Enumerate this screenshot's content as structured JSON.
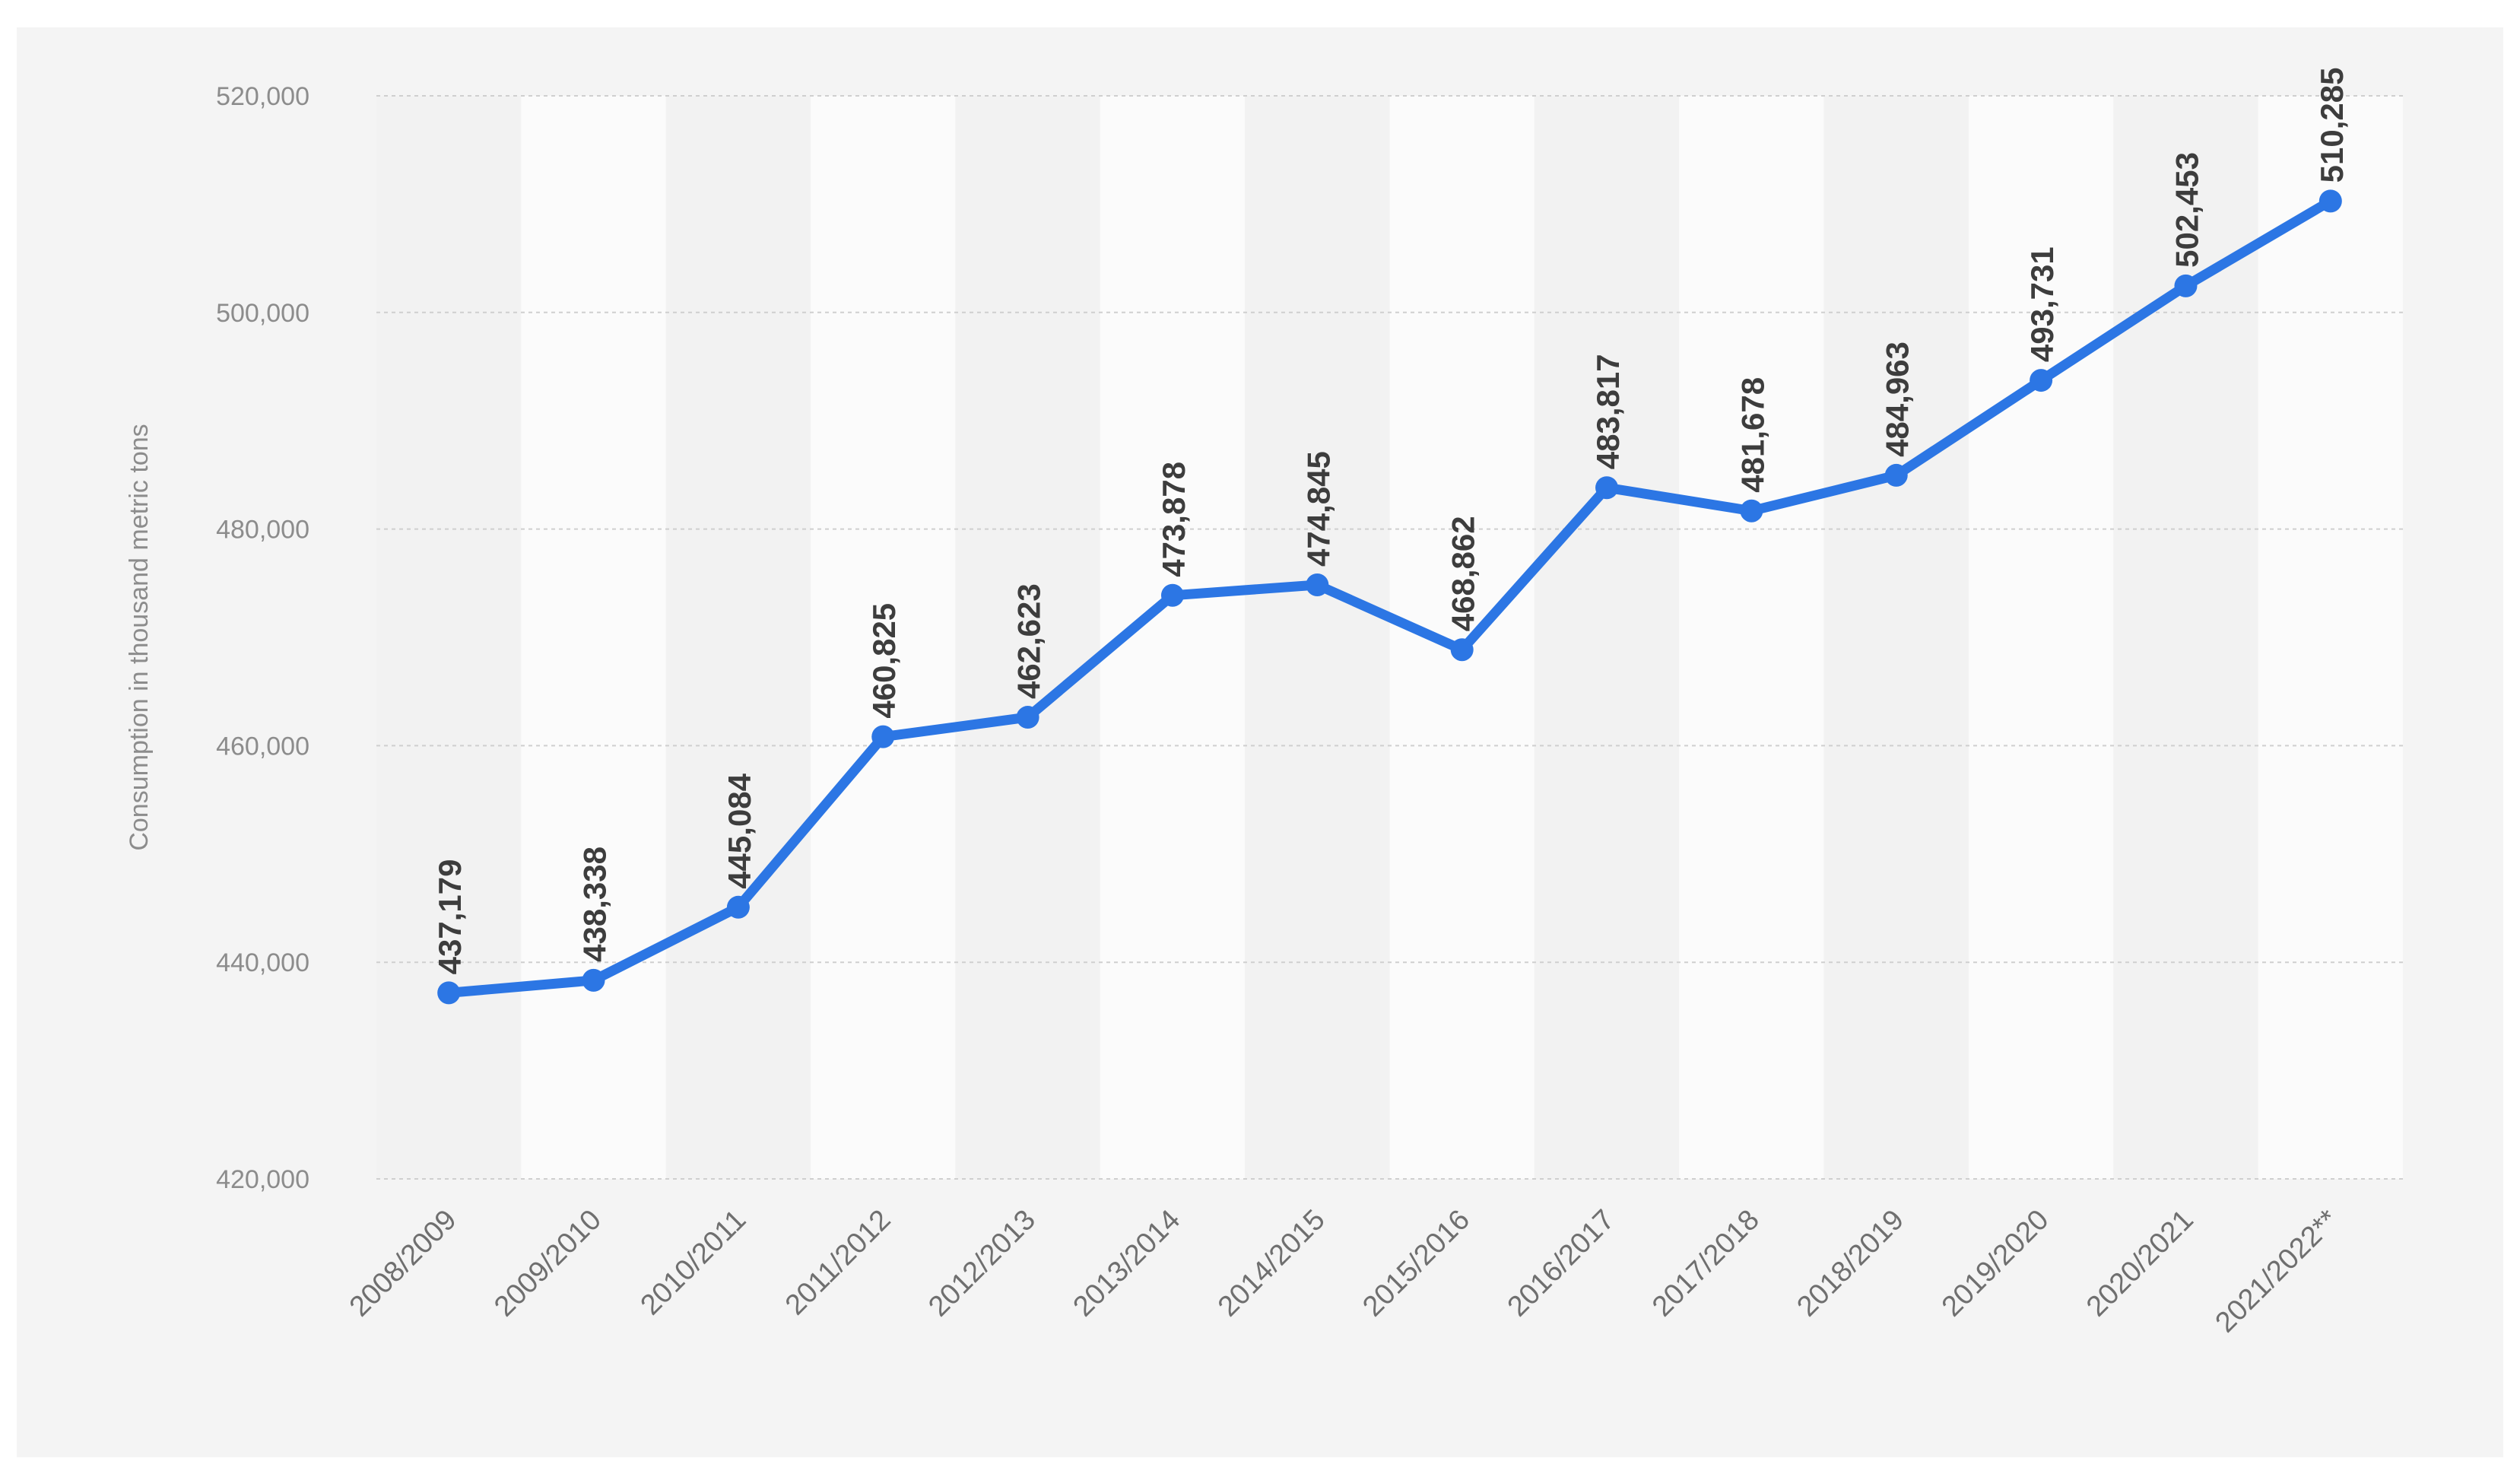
{
  "chart_data": {
    "type": "line",
    "title": "",
    "xlabel": "",
    "ylabel": "Consumption in thousand metric tons",
    "ylim": [
      420000,
      520000
    ],
    "yticks": [
      420000,
      440000,
      460000,
      480000,
      500000,
      520000
    ],
    "ytick_labels": [
      "420,000",
      "440,000",
      "460,000",
      "480,000",
      "500,000",
      "520,000"
    ],
    "grid": true,
    "categories": [
      "2008/2009",
      "2009/2010",
      "2010/2011",
      "2011/2012",
      "2012/2013",
      "2013/2014",
      "2014/2015",
      "2015/2016",
      "2016/2017",
      "2017/2018",
      "2018/2019",
      "2019/2020",
      "2020/2021",
      "2021/2022**"
    ],
    "series": [
      {
        "values": [
          437179,
          438338,
          445084,
          460825,
          462623,
          473878,
          474845,
          468862,
          483817,
          481678,
          484963,
          493731,
          502453,
          510285
        ],
        "labels": [
          "437,179",
          "438,338",
          "445,084",
          "460,825",
          "462,623",
          "473,878",
          "474,845",
          "468,862",
          "483,817",
          "481,678",
          "484,963",
          "493,731",
          "502,453",
          "510,285"
        ]
      }
    ],
    "colors": {
      "line": "#2c76e4",
      "panel": "#f4f4f4",
      "grid": "#cfcfcf"
    }
  }
}
